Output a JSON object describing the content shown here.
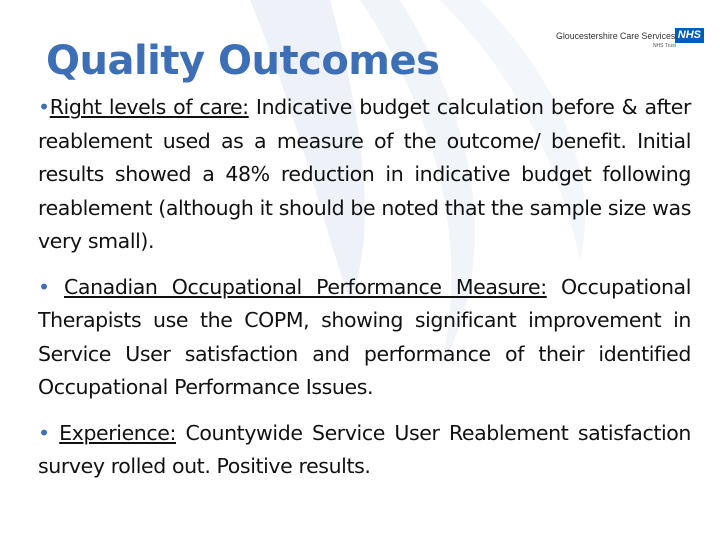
{
  "slide": {
    "title": "Quality Outcomes",
    "logo": {
      "organisation": "Gloucestershire Care Services",
      "nhs_badge": "NHS",
      "trust": "NHS Trust"
    },
    "bullet_symbol": "•",
    "bullets": [
      {
        "heading": "Right levels of care:",
        "body": " Indicative budget calculation before & after reablement used as a  measure of the outcome/ benefit. Initial results showed a 48% reduction in indicative budget following reablement (although it should be noted that the sample size was very small)."
      },
      {
        "heading": "Canadian  Occupational  Performance  Measure:",
        "body": " Occupational Therapists use the COPM, showing significant improvement in Service User satisfaction and performance of their identified Occupational Performance Issues."
      },
      {
        "heading": "Experience:",
        "body": " Countywide Service User Reablement satisfaction survey rolled out. Positive results."
      }
    ]
  },
  "colors": {
    "title": "#3d6fb6",
    "body_text": "#111111",
    "bullet": "#3d6fb6",
    "background_swoosh": "#eef2f8",
    "nhs_blue": "#005eb8"
  }
}
